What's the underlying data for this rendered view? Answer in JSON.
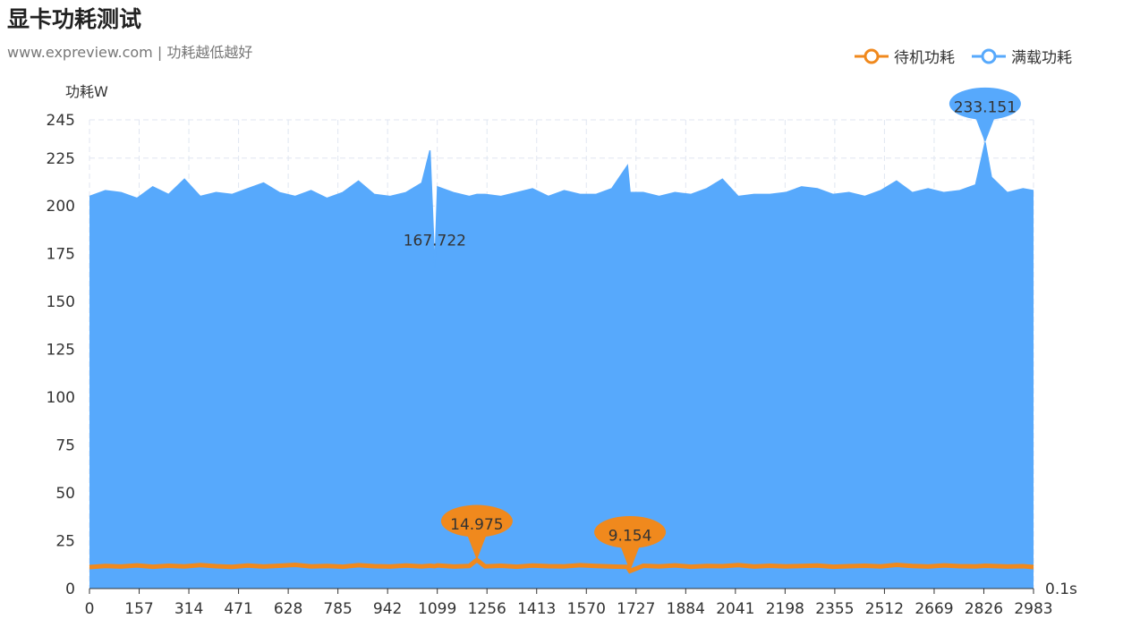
{
  "title": "显卡功耗测试",
  "subtitle": "www.expreview.com | 功耗越低越好",
  "chart_data": {
    "type": "area",
    "title": "显卡功耗测试",
    "subtitle": "www.expreview.com | 功耗越低越好",
    "ylabel": "功耗W",
    "xlabel": "0.1s",
    "ylim": [
      0,
      245
    ],
    "xlim": [
      0,
      2983
    ],
    "yticks": [
      0,
      25,
      50,
      75,
      100,
      125,
      150,
      175,
      200,
      225,
      245
    ],
    "xticks": [
      0,
      157,
      314,
      471,
      628,
      785,
      942,
      1099,
      1256,
      1413,
      1570,
      1727,
      1884,
      2041,
      2198,
      2355,
      2512,
      2669,
      2826,
      2983
    ],
    "grid": true,
    "legend_position": "top-right",
    "x": [
      0,
      50,
      100,
      150,
      200,
      250,
      300,
      350,
      400,
      450,
      500,
      550,
      600,
      650,
      700,
      750,
      800,
      850,
      900,
      950,
      1000,
      1050,
      1076,
      1091,
      1100,
      1150,
      1200,
      1224,
      1250,
      1300,
      1350,
      1400,
      1450,
      1500,
      1550,
      1600,
      1650,
      1700,
      1708,
      1750,
      1800,
      1850,
      1900,
      1950,
      2000,
      2050,
      2100,
      2150,
      2200,
      2250,
      2300,
      2350,
      2400,
      2450,
      2500,
      2550,
      2600,
      2650,
      2700,
      2750,
      2800,
      2830,
      2850,
      2900,
      2950,
      2983
    ],
    "series": [
      {
        "name": "待机功耗",
        "color": "#f0891d",
        "fill": false,
        "values": [
          11.2,
          11.8,
          11.5,
          12.1,
          11.4,
          11.9,
          11.6,
          12.3,
          11.7,
          11.3,
          12.0,
          11.5,
          11.9,
          12.4,
          11.6,
          11.8,
          11.4,
          12.2,
          11.7,
          11.5,
          12.0,
          11.6,
          11.9,
          11.7,
          12.1,
          11.5,
          11.8,
          14.975,
          11.6,
          11.9,
          11.4,
          12.0,
          11.7,
          11.6,
          12.2,
          11.8,
          11.5,
          11.3,
          9.154,
          11.9,
          11.6,
          12.1,
          11.4,
          11.8,
          11.7,
          12.3,
          11.5,
          11.9,
          11.6,
          11.8,
          12.0,
          11.4,
          11.7,
          11.9,
          11.6,
          12.4,
          11.8,
          11.5,
          12.1,
          11.7,
          11.6,
          11.9,
          11.8,
          11.5,
          11.7,
          11.2
        ]
      },
      {
        "name": "满载功耗",
        "color": "#57a9fc",
        "fill": true,
        "values": [
          205,
          208,
          207,
          204,
          210,
          206,
          214,
          205,
          207,
          206,
          209,
          212,
          207,
          205,
          208,
          204,
          207,
          213,
          206,
          205,
          207,
          212,
          229,
          167.722,
          210,
          207,
          205,
          206,
          206,
          205,
          207,
          209,
          205,
          208,
          206,
          206,
          209,
          221,
          207,
          207,
          205,
          207,
          206,
          209,
          214,
          205,
          206,
          206,
          207,
          210,
          209,
          206,
          207,
          205,
          208,
          213,
          207,
          209,
          207,
          208,
          211,
          233.151,
          215,
          207,
          209,
          208
        ]
      }
    ],
    "mark_points": [
      {
        "series": "满载功耗",
        "type": "max",
        "x": 2830,
        "value": "233.151"
      },
      {
        "series": "满载功耗",
        "type": "min",
        "x": 1091,
        "value": "167.722"
      },
      {
        "series": "待机功耗",
        "type": "max",
        "x": 1224,
        "value": "14.975"
      },
      {
        "series": "待机功耗",
        "type": "min",
        "x": 1708,
        "value": "9.154"
      }
    ]
  }
}
